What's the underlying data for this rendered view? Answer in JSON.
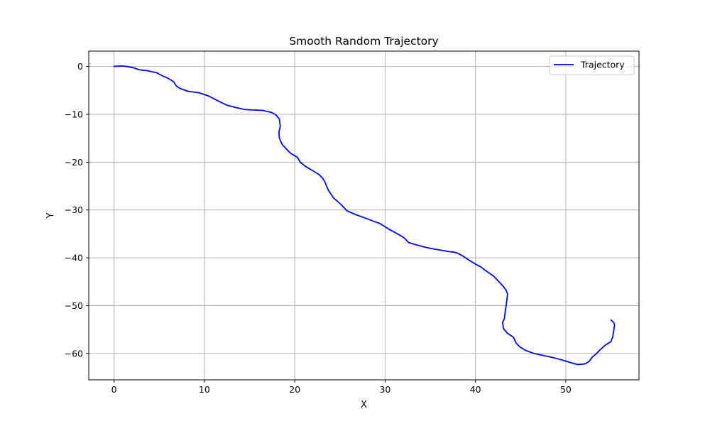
{
  "chart_data": {
    "type": "line",
    "title": "Smooth Random Trajectory",
    "xlabel": "X",
    "ylabel": "Y",
    "xlim": [
      -2.8,
      58.1
    ],
    "ylim": [
      -65.5,
      3.2
    ],
    "xticks": [
      0,
      10,
      20,
      30,
      40,
      50
    ],
    "yticks": [
      0,
      -10,
      -20,
      -30,
      -40,
      -50,
      -60
    ],
    "xtick_labels": [
      "0",
      "10",
      "20",
      "30",
      "40",
      "50"
    ],
    "ytick_labels": [
      "0",
      "−10",
      "−20",
      "−30",
      "−40",
      "−50",
      "−60"
    ],
    "grid": true,
    "legend": {
      "position": "upper-right",
      "entries": [
        "Trajectory"
      ]
    },
    "series": [
      {
        "name": "Trajectory",
        "color": "#0000ff",
        "x": [
          0,
          0.8,
          1.4,
          2.2,
          2.8,
          3.7,
          4.7,
          5.4,
          6.0,
          6.6,
          6.9,
          7.3,
          8.2,
          9.4,
          10.5,
          11.5,
          12.5,
          13.5,
          14.5,
          15.3,
          16.5,
          17.4,
          17.9,
          18.3,
          18.4,
          18.25,
          18.3,
          18.6,
          18.9,
          19.5,
          20.3,
          20.6,
          21.2,
          22.0,
          22.7,
          23.1,
          23.3,
          23.7,
          24.3,
          24.8,
          25.2,
          25.8,
          26.8,
          27.8,
          28.8,
          29.4,
          29.9,
          30.6,
          31.4,
          32.1,
          32.6,
          33.5,
          34.5,
          35.5,
          36.5,
          37.0,
          37.6,
          38.0,
          38.5,
          39.3,
          40.0,
          40.6,
          41.0,
          42.0,
          42.6,
          43.1,
          43.4,
          43.55,
          43.5,
          43.3,
          43.2,
          43.0,
          43.1,
          43.5,
          44.2,
          44.5,
          44.9,
          45.6,
          46.5,
          47.5,
          48.5,
          49.5,
          50.2,
          50.7,
          51.3,
          52.0,
          52.3,
          52.6,
          52.9,
          53.4,
          53.8,
          54.4,
          55.0,
          55.2,
          55.4,
          55.3,
          55.0
        ],
        "y": [
          0,
          0.1,
          0,
          -0.3,
          -0.7,
          -0.9,
          -1.3,
          -2.0,
          -2.5,
          -3.2,
          -4.1,
          -4.6,
          -5.2,
          -5.5,
          -6.2,
          -7.2,
          -8.1,
          -8.6,
          -9.0,
          -9.1,
          -9.2,
          -9.6,
          -10.1,
          -11.0,
          -12.5,
          -13.7,
          -15.0,
          -16.3,
          -16.9,
          -18.1,
          -19.0,
          -20.0,
          -20.9,
          -21.8,
          -22.6,
          -23.4,
          -24.0,
          -25.8,
          -27.5,
          -28.3,
          -29.0,
          -30.2,
          -31.0,
          -31.7,
          -32.4,
          -32.8,
          -33.4,
          -34.2,
          -35.0,
          -35.8,
          -36.8,
          -37.3,
          -37.8,
          -38.2,
          -38.5,
          -38.7,
          -38.8,
          -39.0,
          -39.5,
          -40.5,
          -41.3,
          -41.9,
          -42.5,
          -43.8,
          -45.0,
          -46.0,
          -46.8,
          -47.5,
          -48.5,
          -51.2,
          -52.7,
          -53.5,
          -54.8,
          -55.7,
          -56.6,
          -57.8,
          -58.6,
          -59.4,
          -60.0,
          -60.4,
          -60.8,
          -61.3,
          -61.7,
          -62.0,
          -62.3,
          -62.2,
          -62.0,
          -61.6,
          -60.8,
          -60.0,
          -59.2,
          -58.2,
          -57.5,
          -56.5,
          -54.0,
          -53.5,
          -53.0
        ]
      }
    ]
  }
}
